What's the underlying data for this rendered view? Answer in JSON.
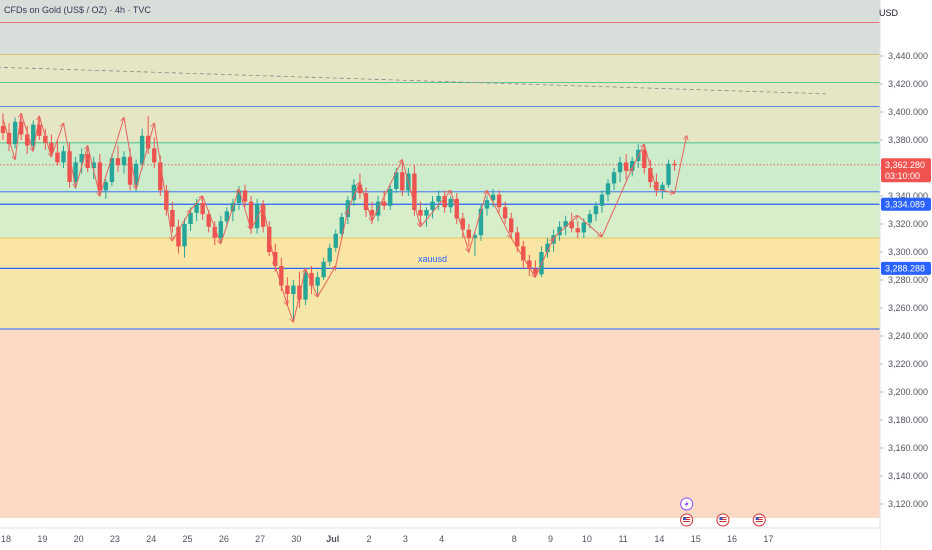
{
  "header": {
    "title": "CFDs on Gold (US$ / OZ) · 4h · TVC",
    "currency": "USD"
  },
  "colors": {
    "up": "#26a69a",
    "down": "#ef5350",
    "arrow": "#e8625c",
    "hline": "#2962ff",
    "zones": [
      "#fbd9c5",
      "#f5e7a8",
      "#fae5a4",
      "#d6eec9",
      "#cdeccb",
      "#e6e6c5",
      "#d9dedb"
    ]
  },
  "annotation": "xauusd",
  "chart_data": {
    "type": "candlestick",
    "title": "CFDs on Gold (US$ / OZ) · 4h · TVC",
    "xlabel": "",
    "ylabel": "",
    "ylim": [
      3110,
      3480
    ],
    "y_ticks": [
      "3,440.000",
      "3,420.000",
      "3,400.000",
      "3,380.000",
      "3,360.000",
      "3,340.000",
      "3,320.000",
      "3,300.000",
      "3,280.000",
      "3,260.000",
      "3,240.000",
      "3,220.000",
      "3,200.000",
      "3,180.000",
      "3,160.000",
      "3,140.000",
      "3,120.000"
    ],
    "y_tick_values": [
      3440,
      3420,
      3400,
      3380,
      3360,
      3340,
      3320,
      3300,
      3280,
      3260,
      3240,
      3220,
      3200,
      3180,
      3160,
      3140,
      3120
    ],
    "x_ticks": [
      {
        "label": "18",
        "x": 0.5
      },
      {
        "label": "19",
        "x": 6.5
      },
      {
        "label": "20",
        "x": 12.5
      },
      {
        "label": "23",
        "x": 18.5
      },
      {
        "label": "24",
        "x": 24.5
      },
      {
        "label": "25",
        "x": 30.5
      },
      {
        "label": "26",
        "x": 36.5
      },
      {
        "label": "27",
        "x": 42.5
      },
      {
        "label": "30",
        "x": 48.5
      },
      {
        "label": "Jul",
        "x": 54.5
      },
      {
        "label": "2",
        "x": 60.5
      },
      {
        "label": "3",
        "x": 66.5
      },
      {
        "label": "4",
        "x": 72.5
      },
      {
        "label": "8",
        "x": 84.5
      },
      {
        "label": "9",
        "x": 90.5
      },
      {
        "label": "10",
        "x": 96.5
      },
      {
        "label": "11",
        "x": 102.5
      },
      {
        "label": "14",
        "x": 108.5
      },
      {
        "label": "15",
        "x": 114.5
      },
      {
        "label": "16",
        "x": 120.5
      },
      {
        "label": "17",
        "x": 126.5
      }
    ],
    "candles": [
      {
        "o": 3390,
        "h": 3399,
        "l": 3380,
        "c": 3385
      },
      {
        "o": 3385,
        "h": 3392,
        "l": 3372,
        "c": 3377
      },
      {
        "o": 3377,
        "h": 3396,
        "l": 3374,
        "c": 3393
      },
      {
        "o": 3393,
        "h": 3399,
        "l": 3380,
        "c": 3384
      },
      {
        "o": 3384,
        "h": 3390,
        "l": 3370,
        "c": 3376
      },
      {
        "o": 3376,
        "h": 3394,
        "l": 3372,
        "c": 3391
      },
      {
        "o": 3391,
        "h": 3397,
        "l": 3380,
        "c": 3383
      },
      {
        "o": 3383,
        "h": 3388,
        "l": 3373,
        "c": 3378
      },
      {
        "o": 3378,
        "h": 3384,
        "l": 3368,
        "c": 3371
      },
      {
        "o": 3371,
        "h": 3380,
        "l": 3362,
        "c": 3364
      },
      {
        "o": 3364,
        "h": 3376,
        "l": 3360,
        "c": 3372
      },
      {
        "o": 3372,
        "h": 3378,
        "l": 3346,
        "c": 3350
      },
      {
        "o": 3350,
        "h": 3368,
        "l": 3345,
        "c": 3364
      },
      {
        "o": 3364,
        "h": 3374,
        "l": 3356,
        "c": 3370
      },
      {
        "o": 3370,
        "h": 3376,
        "l": 3357,
        "c": 3360
      },
      {
        "o": 3360,
        "h": 3368,
        "l": 3352,
        "c": 3364
      },
      {
        "o": 3364,
        "h": 3370,
        "l": 3340,
        "c": 3344
      },
      {
        "o": 3344,
        "h": 3352,
        "l": 3338,
        "c": 3350
      },
      {
        "o": 3350,
        "h": 3370,
        "l": 3347,
        "c": 3367
      },
      {
        "o": 3367,
        "h": 3376,
        "l": 3357,
        "c": 3362
      },
      {
        "o": 3362,
        "h": 3372,
        "l": 3356,
        "c": 3368
      },
      {
        "o": 3368,
        "h": 3374,
        "l": 3344,
        "c": 3348
      },
      {
        "o": 3348,
        "h": 3366,
        "l": 3343,
        "c": 3363
      },
      {
        "o": 3363,
        "h": 3388,
        "l": 3359,
        "c": 3383
      },
      {
        "o": 3383,
        "h": 3397,
        "l": 3370,
        "c": 3374
      },
      {
        "o": 3374,
        "h": 3382,
        "l": 3360,
        "c": 3364
      },
      {
        "o": 3364,
        "h": 3369,
        "l": 3340,
        "c": 3344
      },
      {
        "o": 3344,
        "h": 3348,
        "l": 3326,
        "c": 3330
      },
      {
        "o": 3330,
        "h": 3336,
        "l": 3314,
        "c": 3318
      },
      {
        "o": 3318,
        "h": 3323,
        "l": 3299,
        "c": 3304
      },
      {
        "o": 3304,
        "h": 3324,
        "l": 3296,
        "c": 3320
      },
      {
        "o": 3320,
        "h": 3332,
        "l": 3315,
        "c": 3328
      },
      {
        "o": 3328,
        "h": 3338,
        "l": 3322,
        "c": 3335
      },
      {
        "o": 3335,
        "h": 3340,
        "l": 3323,
        "c": 3327
      },
      {
        "o": 3327,
        "h": 3330,
        "l": 3314,
        "c": 3318
      },
      {
        "o": 3318,
        "h": 3322,
        "l": 3305,
        "c": 3310
      },
      {
        "o": 3310,
        "h": 3326,
        "l": 3306,
        "c": 3322
      },
      {
        "o": 3322,
        "h": 3332,
        "l": 3318,
        "c": 3329
      },
      {
        "o": 3329,
        "h": 3338,
        "l": 3322,
        "c": 3335
      },
      {
        "o": 3335,
        "h": 3347,
        "l": 3330,
        "c": 3344
      },
      {
        "o": 3344,
        "h": 3348,
        "l": 3332,
        "c": 3336
      },
      {
        "o": 3336,
        "h": 3340,
        "l": 3313,
        "c": 3317
      },
      {
        "o": 3317,
        "h": 3338,
        "l": 3313,
        "c": 3334
      },
      {
        "o": 3334,
        "h": 3337,
        "l": 3314,
        "c": 3318
      },
      {
        "o": 3318,
        "h": 3322,
        "l": 3297,
        "c": 3300
      },
      {
        "o": 3300,
        "h": 3306,
        "l": 3286,
        "c": 3290
      },
      {
        "o": 3290,
        "h": 3296,
        "l": 3272,
        "c": 3276
      },
      {
        "o": 3276,
        "h": 3282,
        "l": 3262,
        "c": 3270
      },
      {
        "o": 3270,
        "h": 3280,
        "l": 3250,
        "c": 3276
      },
      {
        "o": 3276,
        "h": 3286,
        "l": 3260,
        "c": 3266
      },
      {
        "o": 3266,
        "h": 3288,
        "l": 3262,
        "c": 3285
      },
      {
        "o": 3285,
        "h": 3290,
        "l": 3270,
        "c": 3276
      },
      {
        "o": 3276,
        "h": 3286,
        "l": 3268,
        "c": 3282
      },
      {
        "o": 3282,
        "h": 3296,
        "l": 3280,
        "c": 3293
      },
      {
        "o": 3293,
        "h": 3306,
        "l": 3290,
        "c": 3303
      },
      {
        "o": 3303,
        "h": 3316,
        "l": 3300,
        "c": 3313
      },
      {
        "o": 3313,
        "h": 3328,
        "l": 3310,
        "c": 3325
      },
      {
        "o": 3325,
        "h": 3340,
        "l": 3320,
        "c": 3337
      },
      {
        "o": 3337,
        "h": 3352,
        "l": 3333,
        "c": 3348
      },
      {
        "o": 3348,
        "h": 3356,
        "l": 3338,
        "c": 3342
      },
      {
        "o": 3342,
        "h": 3346,
        "l": 3325,
        "c": 3330
      },
      {
        "o": 3330,
        "h": 3336,
        "l": 3320,
        "c": 3326
      },
      {
        "o": 3326,
        "h": 3340,
        "l": 3322,
        "c": 3336
      },
      {
        "o": 3336,
        "h": 3344,
        "l": 3330,
        "c": 3333
      },
      {
        "o": 3333,
        "h": 3348,
        "l": 3330,
        "c": 3345
      },
      {
        "o": 3345,
        "h": 3360,
        "l": 3342,
        "c": 3357
      },
      {
        "o": 3357,
        "h": 3366,
        "l": 3340,
        "c": 3344
      },
      {
        "o": 3344,
        "h": 3360,
        "l": 3340,
        "c": 3356
      },
      {
        "o": 3356,
        "h": 3362,
        "l": 3326,
        "c": 3330
      },
      {
        "o": 3330,
        "h": 3336,
        "l": 3320,
        "c": 3326
      },
      {
        "o": 3326,
        "h": 3332,
        "l": 3318,
        "c": 3330
      },
      {
        "o": 3330,
        "h": 3340,
        "l": 3324,
        "c": 3336
      },
      {
        "o": 3336,
        "h": 3344,
        "l": 3330,
        "c": 3340
      },
      {
        "o": 3340,
        "h": 3344,
        "l": 3328,
        "c": 3332
      },
      {
        "o": 3332,
        "h": 3340,
        "l": 3328,
        "c": 3338
      },
      {
        "o": 3338,
        "h": 3342,
        "l": 3320,
        "c": 3324
      },
      {
        "o": 3324,
        "h": 3328,
        "l": 3310,
        "c": 3316
      },
      {
        "o": 3316,
        "h": 3320,
        "l": 3304,
        "c": 3310
      },
      {
        "o": 3310,
        "h": 3314,
        "l": 3297,
        "c": 3312
      },
      {
        "o": 3312,
        "h": 3334,
        "l": 3308,
        "c": 3331
      },
      {
        "o": 3331,
        "h": 3340,
        "l": 3326,
        "c": 3337
      },
      {
        "o": 3337,
        "h": 3345,
        "l": 3332,
        "c": 3341
      },
      {
        "o": 3341,
        "h": 3344,
        "l": 3328,
        "c": 3332
      },
      {
        "o": 3332,
        "h": 3336,
        "l": 3320,
        "c": 3324
      },
      {
        "o": 3324,
        "h": 3328,
        "l": 3310,
        "c": 3314
      },
      {
        "o": 3314,
        "h": 3318,
        "l": 3300,
        "c": 3304
      },
      {
        "o": 3304,
        "h": 3308,
        "l": 3288,
        "c": 3294
      },
      {
        "o": 3294,
        "h": 3298,
        "l": 3283,
        "c": 3288
      },
      {
        "o": 3288,
        "h": 3294,
        "l": 3282,
        "c": 3284
      },
      {
        "o": 3284,
        "h": 3304,
        "l": 3282,
        "c": 3300
      },
      {
        "o": 3300,
        "h": 3310,
        "l": 3296,
        "c": 3306
      },
      {
        "o": 3306,
        "h": 3316,
        "l": 3300,
        "c": 3312
      },
      {
        "o": 3312,
        "h": 3322,
        "l": 3308,
        "c": 3318
      },
      {
        "o": 3318,
        "h": 3326,
        "l": 3312,
        "c": 3322
      },
      {
        "o": 3322,
        "h": 3328,
        "l": 3314,
        "c": 3317
      },
      {
        "o": 3317,
        "h": 3322,
        "l": 3310,
        "c": 3314
      },
      {
        "o": 3314,
        "h": 3324,
        "l": 3310,
        "c": 3321
      },
      {
        "o": 3321,
        "h": 3330,
        "l": 3317,
        "c": 3327
      },
      {
        "o": 3327,
        "h": 3336,
        "l": 3322,
        "c": 3333
      },
      {
        "o": 3333,
        "h": 3344,
        "l": 3328,
        "c": 3341
      },
      {
        "o": 3341,
        "h": 3352,
        "l": 3336,
        "c": 3349
      },
      {
        "o": 3349,
        "h": 3360,
        "l": 3344,
        "c": 3357
      },
      {
        "o": 3357,
        "h": 3368,
        "l": 3350,
        "c": 3364
      },
      {
        "o": 3364,
        "h": 3370,
        "l": 3352,
        "c": 3358
      },
      {
        "o": 3358,
        "h": 3368,
        "l": 3354,
        "c": 3365
      },
      {
        "o": 3365,
        "h": 3377,
        "l": 3360,
        "c": 3373
      },
      {
        "o": 3373,
        "h": 3376,
        "l": 3356,
        "c": 3360
      },
      {
        "o": 3360,
        "h": 3366,
        "l": 3346,
        "c": 3350
      },
      {
        "o": 3350,
        "h": 3356,
        "l": 3340,
        "c": 3344
      },
      {
        "o": 3344,
        "h": 3350,
        "l": 3338,
        "c": 3348
      },
      {
        "o": 3348,
        "h": 3366,
        "l": 3346,
        "c": 3363
      },
      {
        "o": 3363,
        "h": 3366,
        "l": 3358,
        "c": 3362
      }
    ],
    "zones": [
      {
        "from": 3110,
        "to": 3245
      },
      {
        "from": 3245,
        "to": 3288
      },
      {
        "from": 3288,
        "to": 3310
      },
      {
        "from": 3310,
        "to": 3343
      },
      {
        "from": 3343,
        "to": 3378
      },
      {
        "from": 3378,
        "to": 3441
      },
      {
        "from": 3441,
        "to": 3480
      }
    ],
    "horizontal_lines": [
      {
        "price": 3464,
        "color": "#ef5350",
        "style": "solid",
        "width": 0.8
      },
      {
        "price": 3441,
        "color": "#d4b75a",
        "style": "solid",
        "width": 0.8
      },
      {
        "price": 3421,
        "color": "#2ebd85",
        "style": "solid",
        "width": 0.8
      },
      {
        "price": 3404,
        "color": "#2962ff",
        "style": "solid",
        "width": 0.8
      },
      {
        "price": 3378,
        "color": "#2ebd85",
        "style": "solid",
        "width": 0.8
      },
      {
        "price": 3343,
        "color": "#2962ff",
        "style": "solid",
        "width": 0.8
      },
      {
        "price": 3334.089,
        "color": "#2962ff",
        "style": "solid",
        "width": 1.2
      },
      {
        "price": 3310,
        "color": "#e5b94a",
        "style": "solid",
        "width": 0.8
      },
      {
        "price": 3288.288,
        "color": "#2962ff",
        "style": "solid",
        "width": 1.2
      },
      {
        "price": 3245,
        "color": "#2962ff",
        "style": "solid",
        "width": 1
      }
    ],
    "trendline": {
      "from": {
        "i": -1,
        "p": 3432
      },
      "to": {
        "i": 136,
        "p": 3413
      },
      "color": "#888888"
    },
    "current_price_line": {
      "price": 3362.28,
      "color": "#ef5350"
    },
    "price_badges": [
      {
        "price": 3362.28,
        "text": "3,362.280",
        "sub": "03:10:00",
        "color": "#ef5350"
      },
      {
        "price": 3334.089,
        "text": "3,334.089",
        "color": "#2962ff"
      },
      {
        "price": 3288.288,
        "text": "3,288.288",
        "color": "#2962ff"
      }
    ],
    "annotation_position": {
      "i": 71,
      "p": 3293
    },
    "arrow_path": [
      {
        "i": 0,
        "p": 3395
      },
      {
        "i": 2,
        "p": 3366
      },
      {
        "i": 3,
        "p": 3399
      },
      {
        "i": 5,
        "p": 3372
      },
      {
        "i": 6,
        "p": 3397
      },
      {
        "i": 8,
        "p": 3368
      },
      {
        "i": 10,
        "p": 3392
      },
      {
        "i": 12,
        "p": 3346
      },
      {
        "i": 14,
        "p": 3376
      },
      {
        "i": 16,
        "p": 3340
      },
      {
        "i": 20,
        "p": 3396
      },
      {
        "i": 22,
        "p": 3345
      },
      {
        "i": 25,
        "p": 3392
      },
      {
        "i": 28,
        "p": 3308
      },
      {
        "i": 31,
        "p": 3330
      },
      {
        "i": 33,
        "p": 3340
      },
      {
        "i": 36,
        "p": 3306
      },
      {
        "i": 39,
        "p": 3345
      },
      {
        "i": 41,
        "p": 3316
      },
      {
        "i": 43,
        "p": 3333
      },
      {
        "i": 45,
        "p": 3290
      },
      {
        "i": 47,
        "p": 3262
      },
      {
        "i": 48,
        "p": 3250
      },
      {
        "i": 50,
        "p": 3288
      },
      {
        "i": 52,
        "p": 3268
      },
      {
        "i": 55,
        "p": 3290
      },
      {
        "i": 57,
        "p": 3330
      },
      {
        "i": 59,
        "p": 3350
      },
      {
        "i": 61,
        "p": 3322
      },
      {
        "i": 66,
        "p": 3366
      },
      {
        "i": 69,
        "p": 3318
      },
      {
        "i": 74,
        "p": 3344
      },
      {
        "i": 77,
        "p": 3300
      },
      {
        "i": 80,
        "p": 3344
      },
      {
        "i": 84,
        "p": 3310
      },
      {
        "i": 88,
        "p": 3282
      },
      {
        "i": 91,
        "p": 3310
      },
      {
        "i": 95,
        "p": 3326
      },
      {
        "i": 99,
        "p": 3311
      },
      {
        "i": 104,
        "p": 3360
      },
      {
        "i": 106,
        "p": 3377
      },
      {
        "i": 108,
        "p": 3345
      },
      {
        "i": 111,
        "p": 3342
      },
      {
        "i": 113,
        "p": 3383
      }
    ],
    "events": [
      {
        "i": 113,
        "icon": "lightning-icon",
        "color": "#8a4fff",
        "row": 0
      },
      {
        "i": 113,
        "icon": "us-flag-icon",
        "color": "#d32f2f",
        "row": 1
      },
      {
        "i": 119,
        "icon": "us-flag-icon",
        "color": "#d32f2f",
        "row": 1
      },
      {
        "i": 125,
        "icon": "us-flag-icon",
        "color": "#d32f2f",
        "row": 1
      }
    ]
  }
}
